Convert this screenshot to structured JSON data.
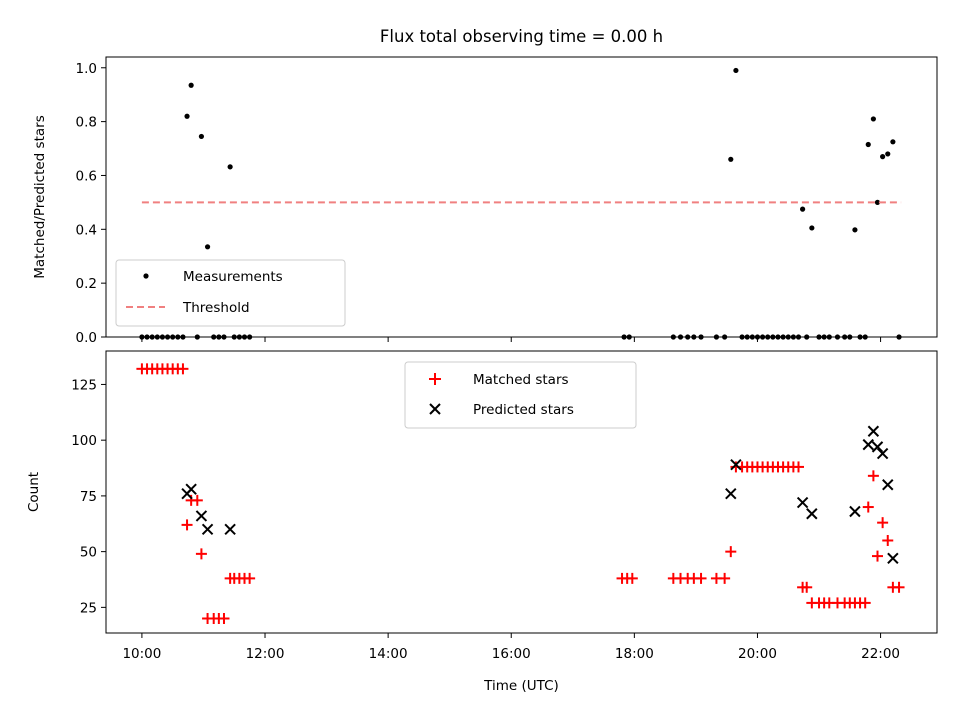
{
  "chart_data": [
    {
      "type": "scatter",
      "title": "Flux total observing time = 0.00 h",
      "xlabel": "",
      "ylabel": "Matched/Predicted stars",
      "xlim": [
        "09:25",
        "22:55"
      ],
      "ylim": [
        0,
        1.04
      ],
      "yticks": [
        "0.0",
        "0.2",
        "0.4",
        "0.6",
        "0.8",
        "1.0"
      ],
      "xticks": [
        "10:00",
        "12:00",
        "14:00",
        "16:00",
        "18:00",
        "20:00",
        "22:00"
      ],
      "legend": "lower-left",
      "series": [
        {
          "name": "Measurements",
          "marker": "dot",
          "color": "#000000",
          "points": [
            [
              "10:00",
              0
            ],
            [
              "10:05",
              0
            ],
            [
              "10:10",
              0
            ],
            [
              "10:15",
              0
            ],
            [
              "10:20",
              0
            ],
            [
              "10:25",
              0
            ],
            [
              "10:30",
              0
            ],
            [
              "10:35",
              0
            ],
            [
              "10:40",
              0
            ],
            [
              "10:44",
              0.82
            ],
            [
              "10:48",
              0.935
            ],
            [
              "10:54",
              0
            ],
            [
              "10:58",
              0.745
            ],
            [
              "11:04",
              0.335
            ],
            [
              "11:10",
              0
            ],
            [
              "11:15",
              0
            ],
            [
              "11:20",
              0
            ],
            [
              "11:26",
              0.632
            ],
            [
              "11:30",
              0
            ],
            [
              "11:35",
              0
            ],
            [
              "11:40",
              0
            ],
            [
              "11:45",
              0
            ],
            [
              "17:50",
              0
            ],
            [
              "17:55",
              0
            ],
            [
              "18:38",
              0
            ],
            [
              "18:45",
              0
            ],
            [
              "18:52",
              0
            ],
            [
              "18:58",
              0
            ],
            [
              "19:05",
              0
            ],
            [
              "19:20",
              0
            ],
            [
              "19:28",
              0
            ],
            [
              "19:34",
              0.66
            ],
            [
              "19:39",
              0.99
            ],
            [
              "19:45",
              0
            ],
            [
              "19:50",
              0
            ],
            [
              "19:55",
              0
            ],
            [
              "20:00",
              0
            ],
            [
              "20:05",
              0
            ],
            [
              "20:10",
              0
            ],
            [
              "20:15",
              0
            ],
            [
              "20:20",
              0
            ],
            [
              "20:25",
              0
            ],
            [
              "20:30",
              0
            ],
            [
              "20:35",
              0
            ],
            [
              "20:40",
              0
            ],
            [
              "20:44",
              0.475
            ],
            [
              "20:48",
              0
            ],
            [
              "20:53",
              0.405
            ],
            [
              "21:00",
              0
            ],
            [
              "21:05",
              0
            ],
            [
              "21:10",
              0
            ],
            [
              "21:18",
              0
            ],
            [
              "21:25",
              0
            ],
            [
              "21:30",
              0
            ],
            [
              "21:35",
              0.398
            ],
            [
              "21:40",
              0
            ],
            [
              "21:45",
              0
            ],
            [
              "21:48",
              0.715
            ],
            [
              "21:53",
              0.81
            ],
            [
              "21:57",
              0.5
            ],
            [
              "22:02",
              0.67
            ],
            [
              "22:07",
              0.68
            ],
            [
              "22:12",
              0.725
            ],
            [
              "22:18",
              0
            ]
          ]
        },
        {
          "name": "Threshold",
          "style": "dashed",
          "color": "#f08080",
          "points": [
            [
              "10:00",
              0.5
            ],
            [
              "22:20",
              0.5
            ]
          ]
        }
      ]
    },
    {
      "type": "scatter",
      "title": "",
      "xlabel": "Time (UTC)",
      "ylabel": "Count",
      "xlim": [
        "09:25",
        "22:55"
      ],
      "ylim": [
        13.5,
        140
      ],
      "yticks": [
        "25",
        "50",
        "75",
        "100",
        "125"
      ],
      "xticks": [
        "10:00",
        "12:00",
        "14:00",
        "16:00",
        "18:00",
        "20:00",
        "22:00"
      ],
      "legend": "upper-center",
      "series": [
        {
          "name": "Matched stars",
          "marker": "plus",
          "color": "#ff0000",
          "points": [
            [
              "10:00",
              132
            ],
            [
              "10:05",
              132
            ],
            [
              "10:10",
              132
            ],
            [
              "10:15",
              132
            ],
            [
              "10:20",
              132
            ],
            [
              "10:25",
              132
            ],
            [
              "10:30",
              132
            ],
            [
              "10:35",
              132
            ],
            [
              "10:40",
              132
            ],
            [
              "10:44",
              62
            ],
            [
              "10:48",
              73
            ],
            [
              "10:54",
              73
            ],
            [
              "10:58",
              49
            ],
            [
              "11:04",
              20
            ],
            [
              "11:10",
              20
            ],
            [
              "11:15",
              20
            ],
            [
              "11:20",
              20
            ],
            [
              "11:26",
              38
            ],
            [
              "11:30",
              38
            ],
            [
              "11:35",
              38
            ],
            [
              "11:40",
              38
            ],
            [
              "11:45",
              38
            ],
            [
              "17:48",
              38
            ],
            [
              "17:53",
              38
            ],
            [
              "17:58",
              38
            ],
            [
              "18:38",
              38
            ],
            [
              "18:45",
              38
            ],
            [
              "18:52",
              38
            ],
            [
              "18:58",
              38
            ],
            [
              "19:05",
              38
            ],
            [
              "19:20",
              38
            ],
            [
              "19:28",
              38
            ],
            [
              "19:34",
              50
            ],
            [
              "19:39",
              88
            ],
            [
              "19:45",
              88
            ],
            [
              "19:50",
              88
            ],
            [
              "19:55",
              88
            ],
            [
              "20:00",
              88
            ],
            [
              "20:05",
              88
            ],
            [
              "20:10",
              88
            ],
            [
              "20:15",
              88
            ],
            [
              "20:20",
              88
            ],
            [
              "20:25",
              88
            ],
            [
              "20:30",
              88
            ],
            [
              "20:35",
              88
            ],
            [
              "20:40",
              88
            ],
            [
              "20:44",
              34
            ],
            [
              "20:48",
              34
            ],
            [
              "20:53",
              27
            ],
            [
              "21:00",
              27
            ],
            [
              "21:05",
              27
            ],
            [
              "21:10",
              27
            ],
            [
              "21:18",
              27
            ],
            [
              "21:25",
              27
            ],
            [
              "21:30",
              27
            ],
            [
              "21:35",
              27
            ],
            [
              "21:40",
              27
            ],
            [
              "21:45",
              27
            ],
            [
              "21:48",
              70
            ],
            [
              "21:53",
              84
            ],
            [
              "21:57",
              48
            ],
            [
              "22:02",
              63
            ],
            [
              "22:07",
              55
            ],
            [
              "22:12",
              34
            ],
            [
              "22:18",
              34
            ]
          ]
        },
        {
          "name": "Predicted stars",
          "marker": "x",
          "color": "#000000",
          "points": [
            [
              "10:44",
              76
            ],
            [
              "10:48",
              78
            ],
            [
              "10:58",
              66
            ],
            [
              "11:04",
              60
            ],
            [
              "11:26",
              60
            ],
            [
              "19:34",
              76
            ],
            [
              "19:39",
              89
            ],
            [
              "20:44",
              72
            ],
            [
              "20:53",
              67
            ],
            [
              "21:35",
              68
            ],
            [
              "21:48",
              98
            ],
            [
              "21:53",
              104
            ],
            [
              "21:57",
              97
            ],
            [
              "22:02",
              94
            ],
            [
              "22:07",
              80
            ],
            [
              "22:12",
              47
            ]
          ]
        }
      ]
    }
  ]
}
